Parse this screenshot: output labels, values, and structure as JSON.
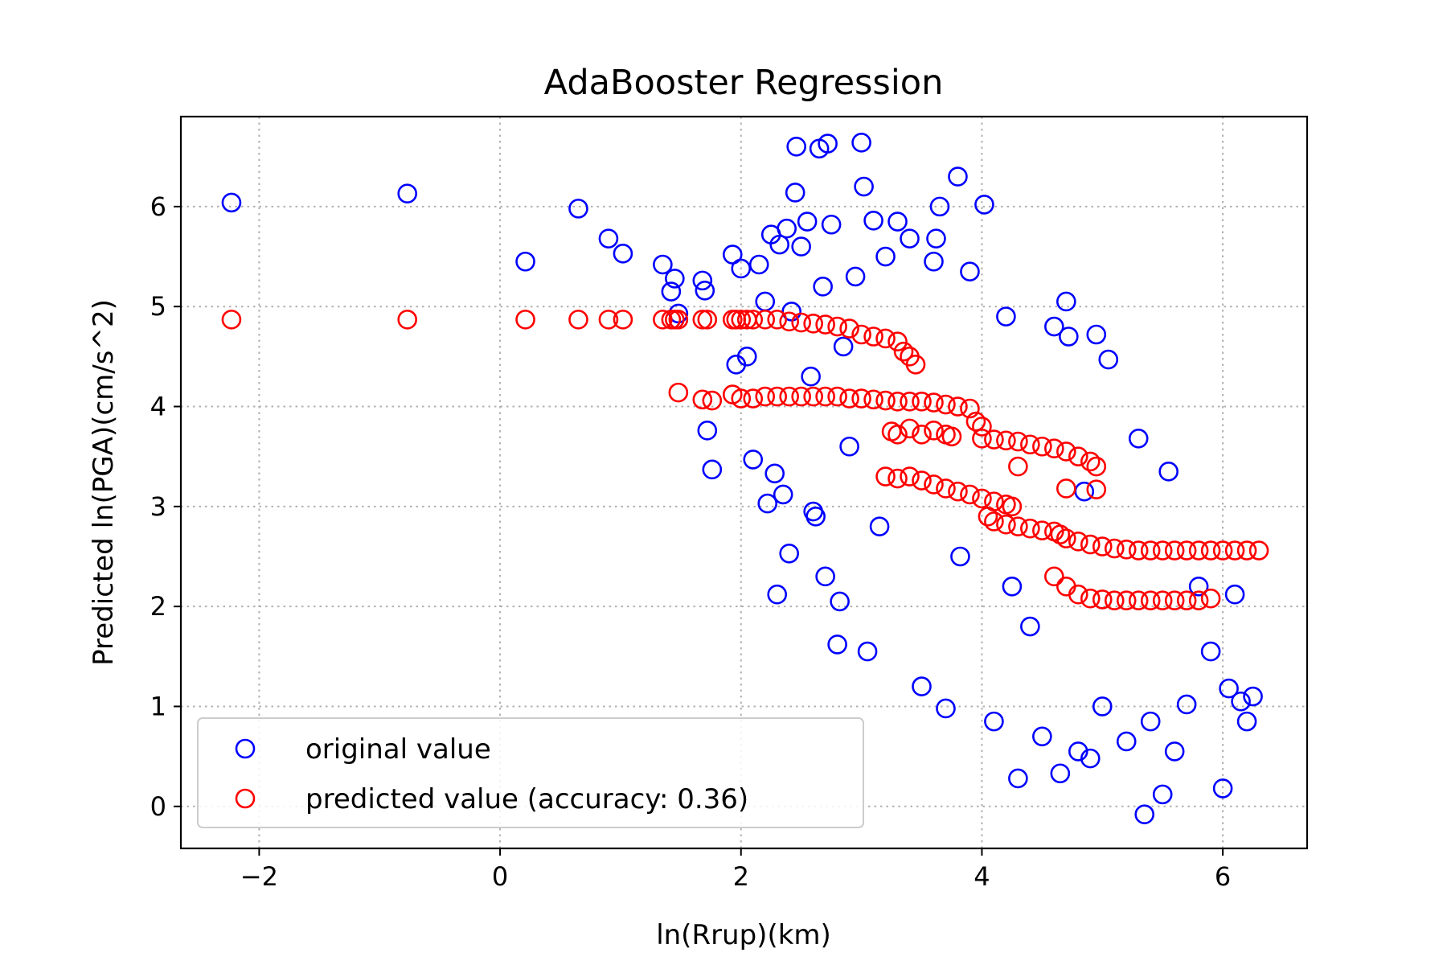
{
  "chart_data": {
    "type": "scatter",
    "title": "AdaBooster Regression",
    "xlabel": "ln(Rrup)(km)",
    "ylabel": "Predicted ln(PGA)(cm/s^2)",
    "xlim": [
      -2.65,
      6.7
    ],
    "ylim": [
      -0.42,
      6.9
    ],
    "xticks": [
      -2,
      0,
      2,
      4,
      6
    ],
    "xtick_labels": [
      "−2",
      "0",
      "2",
      "4",
      "6"
    ],
    "yticks": [
      0,
      1,
      2,
      3,
      4,
      5,
      6
    ],
    "ytick_labels": [
      "0",
      "1",
      "2",
      "3",
      "4",
      "5",
      "6"
    ],
    "grid": true,
    "legend_position": "lower-left",
    "marker": "open-circle",
    "series": [
      {
        "name": "original value",
        "color": "#0000ff",
        "x": [
          -2.23,
          -0.77,
          0.21,
          0.65,
          0.9,
          1.02,
          1.35,
          1.42,
          1.45,
          1.48,
          1.68,
          1.7,
          1.72,
          1.76,
          1.93,
          1.96,
          2.0,
          2.05,
          2.1,
          2.15,
          2.2,
          2.22,
          2.25,
          2.28,
          2.3,
          2.32,
          2.35,
          2.38,
          2.4,
          2.42,
          2.45,
          2.46,
          2.5,
          2.55,
          2.58,
          2.6,
          2.62,
          2.65,
          2.68,
          2.7,
          2.72,
          2.75,
          2.8,
          2.82,
          2.85,
          2.9,
          2.95,
          3.0,
          3.02,
          3.05,
          3.1,
          3.15,
          3.2,
          3.3,
          3.4,
          3.5,
          3.6,
          3.62,
          3.65,
          3.7,
          3.8,
          3.82,
          3.9,
          4.02,
          4.1,
          4.2,
          4.25,
          4.3,
          4.4,
          4.5,
          4.6,
          4.65,
          4.7,
          4.72,
          4.8,
          4.85,
          4.9,
          4.95,
          5.0,
          5.05,
          5.2,
          5.3,
          5.35,
          5.4,
          5.5,
          5.55,
          5.6,
          5.7,
          5.8,
          5.9,
          6.0,
          6.05,
          6.1,
          6.15,
          6.2,
          6.25
        ],
        "y": [
          6.04,
          6.13,
          5.45,
          5.98,
          5.68,
          5.53,
          5.42,
          5.15,
          5.28,
          4.93,
          5.26,
          5.16,
          3.76,
          3.37,
          5.52,
          4.42,
          5.38,
          4.5,
          3.47,
          5.42,
          5.05,
          3.03,
          5.72,
          3.33,
          2.12,
          5.62,
          3.12,
          5.78,
          2.53,
          4.95,
          6.14,
          6.6,
          5.6,
          5.85,
          4.3,
          2.95,
          2.9,
          6.58,
          5.2,
          2.3,
          6.63,
          5.82,
          1.62,
          2.05,
          4.6,
          3.6,
          5.3,
          6.64,
          6.2,
          1.55,
          5.86,
          2.8,
          5.5,
          5.85,
          5.68,
          1.2,
          5.45,
          5.68,
          6.0,
          0.98,
          6.3,
          2.5,
          5.35,
          6.02,
          0.85,
          4.9,
          2.2,
          0.28,
          1.8,
          0.7,
          4.8,
          0.33,
          5.05,
          4.7,
          0.55,
          3.15,
          0.48,
          4.72,
          1.0,
          4.47,
          0.65,
          3.68,
          -0.08,
          0.85,
          0.12,
          3.35,
          0.55,
          1.02,
          2.2,
          1.55,
          0.18,
          1.18,
          2.12,
          1.05,
          0.85,
          1.1
        ]
      },
      {
        "name": "predicted value (accuracy: 0.36)",
        "color": "#ff0000",
        "x": [
          -2.23,
          -0.77,
          0.21,
          0.65,
          0.9,
          1.02,
          1.35,
          1.42,
          1.45,
          1.48,
          1.68,
          1.72,
          1.93,
          1.96,
          2.0,
          2.05,
          2.1,
          2.2,
          2.3,
          2.4,
          2.5,
          2.6,
          2.7,
          2.8,
          2.9,
          3.0,
          3.1,
          3.2,
          3.3,
          3.35,
          3.4,
          3.45,
          1.48,
          1.68,
          1.76,
          1.93,
          2.0,
          2.1,
          2.2,
          2.3,
          2.4,
          2.5,
          2.6,
          2.7,
          2.8,
          2.9,
          3.0,
          3.1,
          3.2,
          3.3,
          3.4,
          3.5,
          3.6,
          3.7,
          3.8,
          3.9,
          3.95,
          4.0,
          3.25,
          3.3,
          3.4,
          3.5,
          3.6,
          3.7,
          3.75,
          4.0,
          4.1,
          4.2,
          4.3,
          4.4,
          4.5,
          4.6,
          4.7,
          4.8,
          4.9,
          4.95,
          3.2,
          3.3,
          3.4,
          3.5,
          3.6,
          3.7,
          3.8,
          3.9,
          4.0,
          4.1,
          4.2,
          4.25,
          4.05,
          4.1,
          4.2,
          4.3,
          4.4,
          4.5,
          4.6,
          4.65,
          4.7,
          4.95,
          4.7,
          4.8,
          4.9,
          5.0,
          5.1,
          5.2,
          5.3,
          5.4,
          5.5,
          5.6,
          5.7,
          5.8,
          5.9,
          6.0,
          6.1,
          6.2,
          6.3,
          4.6,
          4.7,
          4.8,
          4.9,
          5.0,
          5.1,
          5.2,
          5.3,
          5.4,
          5.5,
          5.6,
          5.7,
          5.8,
          5.9,
          4.3
        ],
        "y": [
          4.87,
          4.87,
          4.87,
          4.87,
          4.87,
          4.87,
          4.87,
          4.87,
          4.87,
          4.87,
          4.87,
          4.87,
          4.87,
          4.87,
          4.87,
          4.87,
          4.87,
          4.87,
          4.87,
          4.85,
          4.84,
          4.83,
          4.82,
          4.8,
          4.78,
          4.72,
          4.7,
          4.68,
          4.65,
          4.55,
          4.5,
          4.42,
          4.14,
          4.07,
          4.06,
          4.12,
          4.08,
          4.08,
          4.1,
          4.1,
          4.1,
          4.1,
          4.1,
          4.1,
          4.1,
          4.08,
          4.08,
          4.07,
          4.06,
          4.05,
          4.05,
          4.05,
          4.04,
          4.02,
          4.0,
          3.98,
          3.85,
          3.8,
          3.75,
          3.72,
          3.78,
          3.72,
          3.76,
          3.72,
          3.7,
          3.68,
          3.67,
          3.66,
          3.65,
          3.62,
          3.6,
          3.58,
          3.55,
          3.5,
          3.45,
          3.4,
          3.3,
          3.28,
          3.3,
          3.26,
          3.22,
          3.18,
          3.15,
          3.12,
          3.08,
          3.05,
          3.02,
          3.0,
          2.9,
          2.85,
          2.82,
          2.8,
          2.78,
          2.76,
          2.75,
          2.72,
          3.18,
          3.17,
          2.68,
          2.65,
          2.62,
          2.6,
          2.58,
          2.57,
          2.56,
          2.56,
          2.56,
          2.56,
          2.56,
          2.56,
          2.56,
          2.56,
          2.56,
          2.56,
          2.56,
          2.3,
          2.2,
          2.12,
          2.08,
          2.07,
          2.06,
          2.06,
          2.06,
          2.06,
          2.06,
          2.06,
          2.06,
          2.06,
          2.08,
          3.4
        ]
      }
    ]
  }
}
